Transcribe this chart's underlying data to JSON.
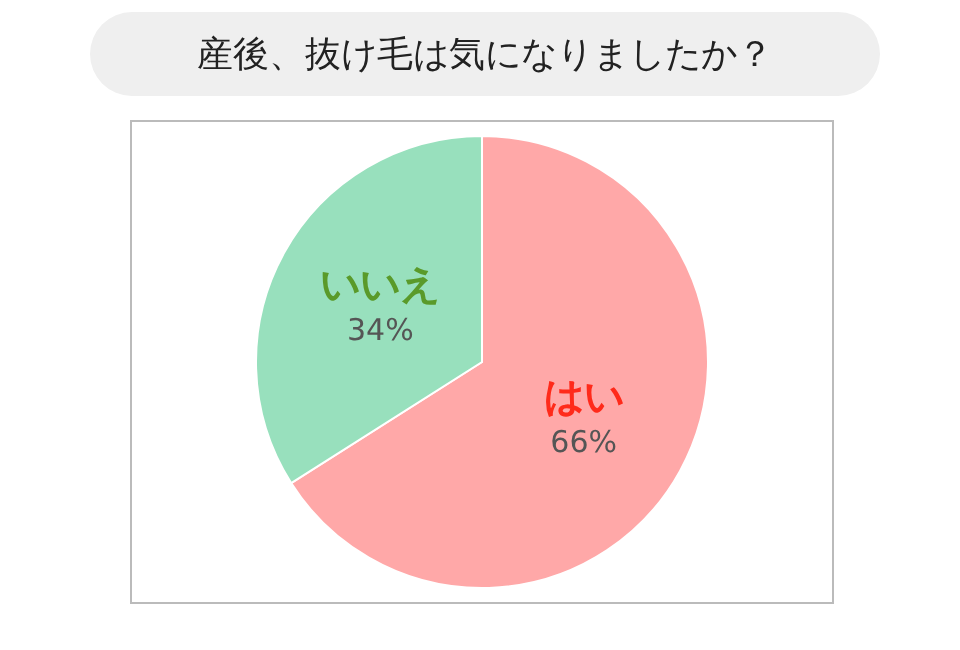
{
  "chart_data": {
    "type": "pie",
    "title": "産後、抜け毛は気になりましたか？",
    "categories": [
      "はい",
      "いいえ"
    ],
    "values": [
      66,
      34
    ],
    "colors": [
      "#ffa8a8",
      "#98e0bd"
    ],
    "value_labels": [
      "66%",
      "34%"
    ]
  }
}
